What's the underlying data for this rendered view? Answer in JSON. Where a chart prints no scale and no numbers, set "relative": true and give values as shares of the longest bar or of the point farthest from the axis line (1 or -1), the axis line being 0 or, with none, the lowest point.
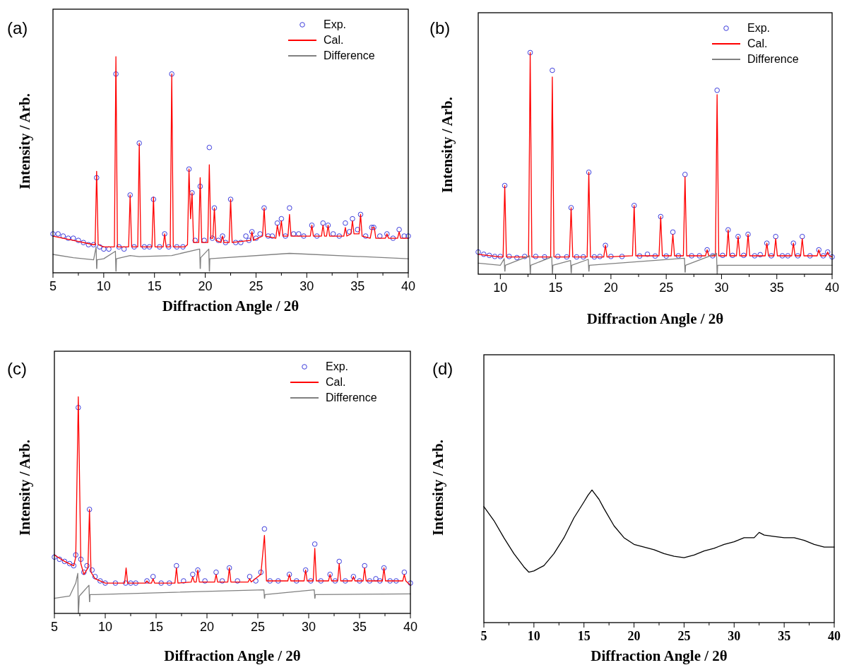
{
  "chart_data": [
    {
      "type": "line",
      "title": "(a)",
      "xlabel": "Diffraction Angle / 2θ",
      "ylabel": "Intensity / Arb.",
      "relative": true,
      "legend": "top right",
      "xlim": [
        5,
        40
      ],
      "xticks": [
        5,
        {
          "value": 7.5,
          "label": null
        },
        10,
        {
          "value": 12.5,
          "label": null
        },
        15,
        {
          "value": 17.5,
          "label": null
        },
        20,
        {
          "value": 22.5,
          "label": null
        },
        25,
        {
          "value": 27.5,
          "label": null
        },
        30,
        {
          "value": 32.5,
          "label": null
        },
        35,
        {
          "value": 37.5,
          "label": null
        },
        40
      ],
      "series": [
        {
          "name": "Exp.",
          "type": "scatter",
          "marker": "circle",
          "color": "#3c3cdc",
          "x": [
            5,
            5.5,
            6,
            6.5,
            7,
            7.5,
            8,
            8.5,
            9,
            9.3,
            9.6,
            10,
            10.5,
            11.2,
            11.5,
            12,
            12.6,
            13,
            13.5,
            14,
            14.5,
            14.9,
            15.5,
            16,
            16.4,
            16.7,
            17.2,
            17.8,
            18.4,
            18.7,
            19,
            19.5,
            19.9,
            20.4,
            20.7,
            20.9,
            21.3,
            21.7,
            22,
            22.5,
            23,
            23.5,
            24,
            24.3,
            24.6,
            25,
            25.4,
            25.8,
            26.2,
            26.6,
            27.1,
            27.5,
            27.9,
            28.3,
            28.7,
            29.2,
            29.7,
            30.5,
            31,
            31.6,
            32.1,
            32.6,
            33.2,
            33.8,
            34.2,
            34.5,
            35,
            35.3,
            35.8,
            36.4,
            36.6,
            37.2,
            37.9,
            38.5,
            39.1,
            39.6,
            40
          ],
          "values": [
            0.18,
            0.18,
            0.17,
            0.16,
            0.16,
            0.15,
            0.14,
            0.13,
            0.13,
            0.44,
            0.12,
            0.11,
            0.11,
            0.92,
            0.12,
            0.11,
            0.36,
            0.12,
            0.6,
            0.12,
            0.12,
            0.34,
            0.12,
            0.18,
            0.12,
            0.92,
            0.12,
            0.12,
            0.48,
            0.37,
            0.15,
            0.4,
            0.15,
            0.58,
            0.16,
            0.3,
            0.15,
            0.17,
            0.14,
            0.34,
            0.14,
            0.14,
            0.17,
            0.15,
            0.19,
            0.16,
            0.18,
            0.3,
            0.17,
            0.17,
            0.23,
            0.25,
            0.17,
            0.3,
            0.18,
            0.18,
            0.17,
            0.22,
            0.17,
            0.23,
            0.22,
            0.18,
            0.17,
            0.23,
            0.19,
            0.25,
            0.2,
            0.27,
            0.17,
            0.21,
            0.21,
            0.17,
            0.18,
            0.16,
            0.2,
            0.17,
            0.17
          ]
        },
        {
          "name": "Cal.",
          "type": "line",
          "color": "#ff0000",
          "x": [
            5,
            7,
            9,
            9.15,
            9.3,
            9.45,
            10,
            11.05,
            11.2,
            11.35,
            12.45,
            12.6,
            12.75,
            13.35,
            13.5,
            13.65,
            14.75,
            14.9,
            15.05,
            15.85,
            16,
            16.15,
            16.55,
            16.7,
            16.85,
            18,
            18.25,
            18.4,
            18.55,
            18.7,
            18.85,
            19.35,
            19.5,
            19.65,
            20.25,
            20.4,
            20.55,
            20.75,
            20.9,
            21.05,
            21.55,
            21.7,
            21.85,
            22.35,
            22.5,
            22.65,
            24.45,
            24.6,
            24.75,
            25.65,
            25.8,
            25.95,
            26.95,
            27.1,
            27.3,
            27.5,
            27.65,
            28.15,
            28.3,
            28.45,
            30.35,
            30.5,
            30.65,
            31.45,
            31.6,
            31.75,
            31.95,
            32.1,
            32.25,
            33.65,
            33.8,
            33.95,
            34.35,
            34.5,
            34.65,
            35.15,
            35.3,
            35.45,
            36.25,
            36.45,
            36.65,
            36.8,
            37.75,
            37.9,
            38.05,
            38.95,
            39.1,
            39.25,
            40
          ],
          "values": [
            0.17,
            0.15,
            0.13,
            0.13,
            0.47,
            0.13,
            0.12,
            0.12,
            1,
            0.12,
            0.12,
            0.36,
            0.12,
            0.12,
            0.6,
            0.12,
            0.12,
            0.35,
            0.12,
            0.12,
            0.18,
            0.12,
            0.12,
            0.92,
            0.12,
            0.12,
            0.13,
            0.48,
            0.25,
            0.37,
            0.14,
            0.14,
            0.44,
            0.14,
            0.14,
            0.5,
            0.16,
            0.16,
            0.3,
            0.15,
            0.14,
            0.17,
            0.14,
            0.14,
            0.34,
            0.14,
            0.15,
            0.19,
            0.15,
            0.17,
            0.3,
            0.17,
            0.16,
            0.22,
            0.17,
            0.24,
            0.17,
            0.17,
            0.27,
            0.17,
            0.17,
            0.22,
            0.17,
            0.17,
            0.22,
            0.17,
            0.17,
            0.22,
            0.17,
            0.17,
            0.21,
            0.17,
            0.18,
            0.24,
            0.18,
            0.18,
            0.27,
            0.17,
            0.16,
            0.21,
            0.21,
            0.16,
            0.16,
            0.18,
            0.16,
            0.16,
            0.19,
            0.16,
            0.16
          ]
        },
        {
          "name": "Difference",
          "type": "line",
          "color": "#808080",
          "x": [
            5,
            7,
            9,
            9.25,
            9.3,
            9.32,
            9.35,
            10,
            11.15,
            11.2,
            11.22,
            11.25,
            12.6,
            13.5,
            16.7,
            19.45,
            19.5,
            19.52,
            19.55,
            20.35,
            20.4,
            20.42,
            20.45,
            28.3,
            40
          ],
          "values": [
            0.085,
            0.07,
            0.06,
            0.12,
            0.02,
            0.02,
            0.06,
            0.065,
            0.1,
            0.008,
            0.008,
            0.065,
            0.08,
            0.075,
            0.08,
            0.11,
            0.02,
            0.02,
            0.07,
            0.11,
            0.008,
            0.008,
            0.065,
            0.09,
            0.065
          ]
        }
      ]
    },
    {
      "type": "line",
      "title": "(b)",
      "xlabel": "Diffraction Angle / 2θ",
      "ylabel": "Intensity / Arb.",
      "relative": true,
      "legend": "top right",
      "xlim": [
        8,
        40
      ],
      "xticks": [
        10,
        {
          "value": 12.5,
          "label": null
        },
        15,
        {
          "value": 17.5,
          "label": null
        },
        20,
        {
          "value": 22.5,
          "label": null
        },
        25,
        {
          "value": 27.5,
          "label": null
        },
        30,
        {
          "value": 32.5,
          "label": null
        },
        35,
        {
          "value": 37.5,
          "label": null
        },
        40
      ],
      "series": [
        {
          "name": "Exp.",
          "type": "scatter",
          "marker": "circle",
          "color": "#3c3cdc",
          "x": [
            8,
            8.5,
            9,
            9.5,
            10,
            10.4,
            10.8,
            11.5,
            12.2,
            12.7,
            13.2,
            14,
            14.7,
            15.2,
            16,
            16.4,
            16.9,
            17.5,
            18,
            18.5,
            19,
            19.5,
            20,
            21,
            22.1,
            22.6,
            23.3,
            24,
            24.5,
            25,
            25.6,
            26.1,
            26.7,
            27.3,
            28,
            28.7,
            29.2,
            29.6,
            30.1,
            30.6,
            31,
            31.5,
            32,
            32.4,
            33,
            33.5,
            34.1,
            34.5,
            34.9,
            35.5,
            36,
            36.5,
            36.9,
            37.3,
            38,
            38.8,
            39.2,
            39.6,
            40
          ],
          "values": [
            0.1,
            0.09,
            0.085,
            0.08,
            0.08,
            0.4,
            0.08,
            0.075,
            0.08,
            1,
            0.08,
            0.078,
            0.92,
            0.08,
            0.078,
            0.3,
            0.078,
            0.078,
            0.46,
            0.078,
            0.08,
            0.13,
            0.08,
            0.08,
            0.31,
            0.082,
            0.09,
            0.082,
            0.26,
            0.082,
            0.19,
            0.083,
            0.45,
            0.083,
            0.083,
            0.11,
            0.083,
            0.83,
            0.085,
            0.2,
            0.085,
            0.17,
            0.085,
            0.18,
            0.083,
            0.088,
            0.14,
            0.083,
            0.17,
            0.083,
            0.083,
            0.14,
            0.083,
            0.17,
            0.083,
            0.11,
            0.083,
            0.1,
            0.078
          ]
        },
        {
          "name": "Cal.",
          "type": "line",
          "color": "#ff0000",
          "x": [
            8,
            10,
            10.25,
            10.4,
            10.55,
            12.55,
            12.7,
            12.85,
            14.55,
            14.7,
            14.85,
            16.25,
            16.4,
            16.55,
            17.85,
            18,
            18.15,
            19.35,
            19.5,
            19.65,
            21.95,
            22.1,
            22.25,
            24.35,
            24.5,
            24.65,
            25.45,
            25.6,
            25.75,
            26.55,
            26.7,
            26.85,
            28.55,
            28.7,
            28.85,
            29.45,
            29.6,
            29.75,
            30.45,
            30.6,
            30.75,
            31.35,
            31.5,
            31.65,
            32.25,
            32.4,
            32.55,
            33.95,
            34.1,
            34.25,
            34.75,
            34.9,
            35.05,
            36.35,
            36.5,
            36.65,
            37.15,
            37.3,
            37.45,
            38.65,
            38.8,
            38.95,
            39.45,
            39.6,
            39.75,
            40
          ],
          "values": [
            0.09,
            0.078,
            0.078,
            0.4,
            0.078,
            0.078,
            1,
            0.078,
            0.078,
            0.89,
            0.078,
            0.078,
            0.3,
            0.078,
            0.078,
            0.46,
            0.078,
            0.078,
            0.13,
            0.078,
            0.083,
            0.31,
            0.083,
            0.083,
            0.26,
            0.083,
            0.083,
            0.18,
            0.083,
            0.083,
            0.44,
            0.083,
            0.083,
            0.11,
            0.083,
            0.083,
            0.81,
            0.083,
            0.083,
            0.2,
            0.083,
            0.083,
            0.17,
            0.083,
            0.083,
            0.18,
            0.083,
            0.083,
            0.14,
            0.083,
            0.083,
            0.16,
            0.083,
            0.083,
            0.14,
            0.083,
            0.083,
            0.16,
            0.083,
            0.083,
            0.11,
            0.083,
            0.083,
            0.1,
            0.083,
            0.078
          ]
        },
        {
          "name": "Difference",
          "type": "line",
          "color": "#808080",
          "x": [
            8,
            10,
            10.35,
            10.4,
            10.42,
            10.45,
            12.65,
            12.7,
            12.72,
            12.75,
            14.65,
            14.7,
            14.72,
            14.75,
            16.35,
            16.4,
            16.42,
            16.45,
            17.95,
            18,
            18.02,
            18.05,
            26.65,
            26.7,
            26.72,
            26.75,
            29.55,
            29.6,
            29.62,
            29.65,
            40
          ],
          "values": [
            0.05,
            0.04,
            0.07,
            0.014,
            0.014,
            0.04,
            0.083,
            0.003,
            0.003,
            0.04,
            0.078,
            0.003,
            0.003,
            0.04,
            0.062,
            0.006,
            0.006,
            0.04,
            0.067,
            0.014,
            0.014,
            0.04,
            0.072,
            0.009,
            0.009,
            0.04,
            0.094,
            0.001,
            0.001,
            0.04,
            0.04
          ]
        }
      ]
    },
    {
      "type": "line",
      "title": "(c)",
      "xlabel": "Diffraction Angle / 2θ",
      "ylabel": "Intensity / Arb.",
      "relative": true,
      "legend": "top right",
      "xlim": [
        5,
        40
      ],
      "xticks": [
        5,
        {
          "value": 7.5,
          "label": null
        },
        10,
        {
          "value": 12.5,
          "label": null
        },
        15,
        {
          "value": 17.5,
          "label": null
        },
        20,
        {
          "value": 22.5,
          "label": null
        },
        25,
        {
          "value": 27.5,
          "label": null
        },
        30,
        {
          "value": 32.5,
          "label": null
        },
        35,
        {
          "value": 37.5,
          "label": null
        },
        40
      ],
      "series": [
        {
          "name": "Exp.",
          "type": "scatter",
          "marker": "circle",
          "color": "#3c3cdc",
          "x": [
            5,
            5.5,
            6,
            6.5,
            6.9,
            7.1,
            7.35,
            7.6,
            7.9,
            8.2,
            8.45,
            8.7,
            9,
            9.5,
            10,
            11,
            12,
            12.5,
            13,
            14.1,
            14.7,
            15.5,
            16.3,
            17,
            17.7,
            18.6,
            19.1,
            19.8,
            20.9,
            21.5,
            22.2,
            23,
            24.2,
            24.8,
            25.3,
            25.65,
            26.2,
            27,
            28.1,
            28.8,
            29.7,
            30.2,
            30.6,
            31.2,
            32.1,
            32.6,
            33,
            33.6,
            34.4,
            35,
            35.5,
            36,
            36.6,
            37,
            37.4,
            38,
            38.6,
            39.4,
            40
          ],
          "values": [
            0.26,
            0.25,
            0.24,
            0.23,
            0.22,
            0.27,
            0.95,
            0.25,
            0.19,
            0.22,
            0.48,
            0.2,
            0.17,
            0.15,
            0.14,
            0.14,
            0.14,
            0.14,
            0.14,
            0.15,
            0.17,
            0.14,
            0.14,
            0.22,
            0.15,
            0.18,
            0.2,
            0.15,
            0.19,
            0.15,
            0.21,
            0.15,
            0.17,
            0.15,
            0.19,
            0.39,
            0.15,
            0.15,
            0.18,
            0.15,
            0.2,
            0.15,
            0.32,
            0.15,
            0.18,
            0.15,
            0.24,
            0.15,
            0.17,
            0.15,
            0.22,
            0.15,
            0.16,
            0.15,
            0.21,
            0.15,
            0.15,
            0.19,
            0.14
          ]
        },
        {
          "name": "Cal.",
          "type": "line",
          "color": "#ff0000",
          "x": [
            5,
            6,
            6.9,
            7.1,
            7.35,
            7.6,
            7.9,
            8.3,
            8.45,
            8.6,
            9,
            10,
            11.9,
            12.05,
            12.2,
            13.95,
            14.1,
            14.25,
            14.55,
            14.7,
            14.85,
            16.85,
            17,
            17.15,
            18.45,
            18.6,
            18.75,
            18.95,
            19.1,
            19.25,
            20.75,
            20.9,
            21.05,
            22.05,
            22.2,
            22.35,
            24.05,
            24.2,
            24.35,
            25.3,
            25.65,
            25.85,
            27.95,
            28.1,
            28.25,
            29.55,
            29.7,
            29.85,
            30.45,
            30.6,
            30.75,
            31.95,
            32.1,
            32.25,
            32.85,
            33,
            33.15,
            34.25,
            34.4,
            34.55,
            35.35,
            35.5,
            35.65,
            36.45,
            36.6,
            36.75,
            37.25,
            37.4,
            37.55,
            39.25,
            39.4,
            39.55,
            40
          ],
          "values": [
            0.27,
            0.24,
            0.22,
            0.26,
            1,
            0.23,
            0.18,
            0.21,
            0.48,
            0.19,
            0.16,
            0.14,
            0.14,
            0.21,
            0.14,
            0.14,
            0.15,
            0.14,
            0.14,
            0.16,
            0.14,
            0.14,
            0.21,
            0.14,
            0.145,
            0.17,
            0.145,
            0.145,
            0.2,
            0.145,
            0.145,
            0.18,
            0.145,
            0.145,
            0.21,
            0.145,
            0.145,
            0.16,
            0.145,
            0.18,
            0.36,
            0.15,
            0.15,
            0.18,
            0.15,
            0.15,
            0.2,
            0.15,
            0.15,
            0.3,
            0.15,
            0.15,
            0.18,
            0.15,
            0.15,
            0.23,
            0.15,
            0.15,
            0.17,
            0.15,
            0.15,
            0.21,
            0.15,
            0.15,
            0.15,
            0.15,
            0.15,
            0.21,
            0.15,
            0.15,
            0.18,
            0.15,
            0.13
          ]
        },
        {
          "name": "Difference",
          "type": "line",
          "color": "#808080",
          "x": [
            5,
            6.5,
            7.1,
            7.3,
            7.35,
            7.37,
            7.45,
            8.4,
            8.45,
            8.47,
            8.5,
            9,
            25.6,
            25.65,
            25.67,
            25.7,
            30.55,
            30.6,
            30.62,
            30.65,
            40
          ],
          "values": [
            0.07,
            0.08,
            0.14,
            0.185,
            0,
            0,
            0.08,
            0.13,
            0.054,
            0.054,
            0.087,
            0.087,
            0.109,
            0.07,
            0.07,
            0.087,
            0.109,
            0.07,
            0.07,
            0.087,
            0.09
          ]
        }
      ]
    },
    {
      "type": "line",
      "title": "(d)",
      "xlabel": "Diffraction Angle / 2θ",
      "ylabel": "Intensity / Arb.",
      "relative": true,
      "xlim": [
        5,
        40
      ],
      "xticks": [
        5,
        {
          "value": 7.5,
          "label": null
        },
        10,
        {
          "value": 12.5,
          "label": null
        },
        15,
        {
          "value": 17.5,
          "label": null
        },
        20,
        {
          "value": 22.5,
          "label": null
        },
        25,
        {
          "value": 27.5,
          "label": null
        },
        30,
        {
          "value": 32.5,
          "label": null
        },
        35,
        {
          "value": 37.5,
          "label": null
        },
        40
      ],
      "series": [
        {
          "color": "#000000",
          "x": [
            5,
            6,
            7,
            8,
            9,
            9.5,
            10,
            11,
            12,
            13,
            14,
            15,
            15.4,
            15.8,
            16.2,
            16.5,
            17,
            18,
            19,
            20,
            21,
            22,
            23,
            24,
            25,
            26,
            27,
            28,
            29,
            30,
            31,
            32,
            32.5,
            33,
            34,
            35,
            36,
            37,
            38,
            39,
            40
          ],
          "values": [
            0.875,
            0.77,
            0.64,
            0.52,
            0.42,
            0.38,
            0.39,
            0.43,
            0.52,
            0.64,
            0.79,
            0.91,
            0.96,
            1,
            0.96,
            0.93,
            0.86,
            0.73,
            0.64,
            0.59,
            0.57,
            0.55,
            0.52,
            0.5,
            0.49,
            0.51,
            0.54,
            0.56,
            0.59,
            0.61,
            0.64,
            0.64,
            0.68,
            0.66,
            0.65,
            0.64,
            0.64,
            0.62,
            0.59,
            0.57,
            0.57
          ]
        }
      ]
    }
  ]
}
